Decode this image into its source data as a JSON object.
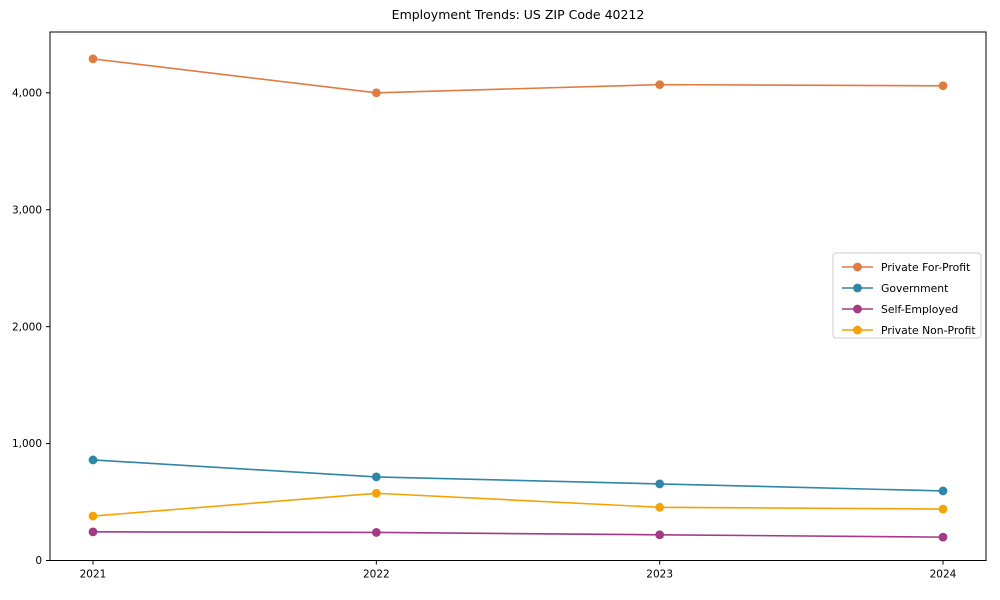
{
  "chart_data": {
    "type": "line",
    "title": "Employment Trends: US ZIP Code 40212",
    "x": [
      "2021",
      "2022",
      "2023",
      "2024"
    ],
    "series": [
      {
        "name": "Private For-Profit",
        "color": "#e07b42",
        "values": [
          4290,
          4000,
          4070,
          4060
        ]
      },
      {
        "name": "Government",
        "color": "#2f86a6",
        "values": [
          860,
          715,
          655,
          595
        ]
      },
      {
        "name": "Self-Employed",
        "color": "#a23a85",
        "values": [
          245,
          240,
          220,
          200
        ]
      },
      {
        "name": "Private Non-Profit",
        "color": "#f4a207",
        "values": [
          380,
          575,
          455,
          440
        ]
      }
    ],
    "xlabel": "",
    "ylabel": "",
    "ylim": [
      0,
      4520
    ],
    "yticks": [
      0,
      1000,
      2000,
      3000,
      4000
    ],
    "ytick_labels": [
      "0",
      "1,000",
      "2,000",
      "3,000",
      "4,000"
    ],
    "grid": false,
    "legend_position": "right",
    "axis_color": "#000000",
    "legend_border_color": "#cccccc",
    "legend_background": "#ffffff"
  }
}
